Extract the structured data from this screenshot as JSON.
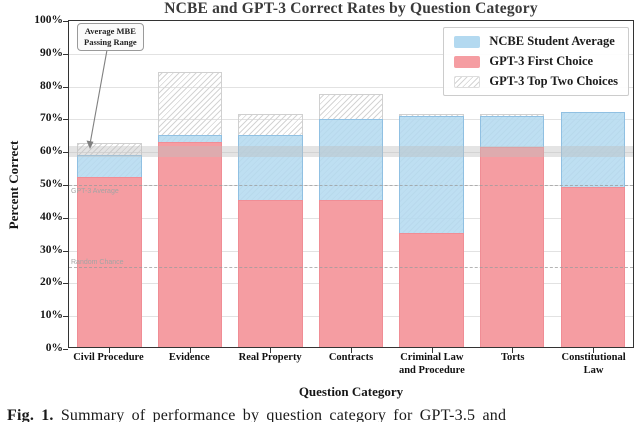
{
  "title": "NCBE and GPT-3 Correct Rates by Question Category",
  "y_axis": {
    "label": "Percent Correct",
    "tick_suffix": "%",
    "ticks": [
      0,
      10,
      20,
      30,
      40,
      50,
      60,
      70,
      80,
      90,
      100
    ]
  },
  "x_axis": {
    "label": "Question Category"
  },
  "legend": {
    "items": [
      {
        "label": "NCBE Student Average",
        "style": "blue"
      },
      {
        "label": "GPT-3 First Choice",
        "style": "red"
      },
      {
        "label": "GPT-3 Top Two Choices",
        "style": "hatch"
      }
    ]
  },
  "annotation": {
    "line1": "Average MBE",
    "line2": "Passing Range"
  },
  "caption": {
    "prefix": "Fig. 1.",
    "text": "Summary of performance by question category for GPT-3.5 and"
  },
  "colors": {
    "ncbe_blue": "#b3d9f0",
    "gpt3_red": "#f59da2",
    "hatch_gray": "#d4d4d4",
    "band_gray": "#bebebe",
    "title_text": "#3a3a3a"
  },
  "chart_data": {
    "type": "bar",
    "title": "NCBE and GPT-3 Correct Rates by Question Category",
    "xlabel": "Question Category",
    "ylabel": "Percent Correct",
    "ylim": [
      0,
      100
    ],
    "grid": true,
    "legend_position": "top-right",
    "categories": [
      "Civil Procedure",
      "Evidence",
      "Real Property",
      "Contracts",
      "Criminal Law and Procedure",
      "Torts",
      "Constitutional Law"
    ],
    "series": [
      {
        "name": "NCBE Student Average",
        "color": "#b3d9f0",
        "style": "solid",
        "values": [
          59,
          65,
          65,
          70,
          71,
          71,
          72
        ]
      },
      {
        "name": "GPT-3 First Choice",
        "color": "#f59da2",
        "style": "solid",
        "values": [
          52,
          63,
          45,
          45,
          35,
          61.5,
          49
        ]
      },
      {
        "name": "GPT-3 Top Two Choices",
        "color": "#d4d4d4",
        "style": "hatched",
        "values": [
          62.5,
          84.5,
          71.5,
          77.5,
          71.5,
          71.5,
          72
        ]
      }
    ],
    "reference_lines": [
      {
        "label": "GPT-3 Average",
        "value": 50,
        "label_position": "below"
      },
      {
        "label": "Random Chance",
        "value": 25,
        "label_position": "above"
      }
    ],
    "band": {
      "label": "Average MBE Passing Range",
      "low": 58.5,
      "high": 62
    }
  }
}
